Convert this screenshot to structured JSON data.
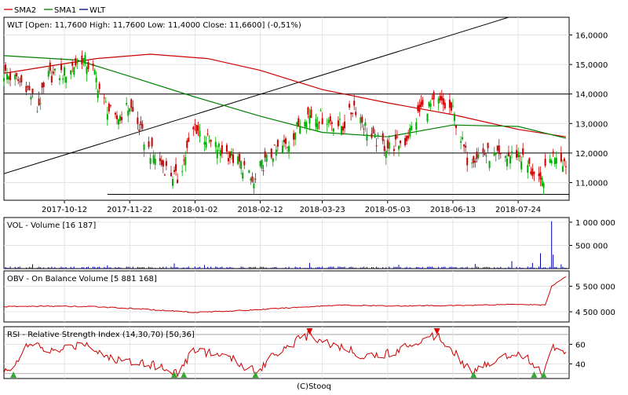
{
  "legend": [
    {
      "name": "SMA2",
      "color": "#cc0000"
    },
    {
      "name": "SMA1",
      "color": "#008000"
    },
    {
      "name": "WLT",
      "color": "#000080"
    }
  ],
  "footer": "(C)Stooq",
  "colors": {
    "up": "#00aa00",
    "down": "#cc0000",
    "volume": "#0000aa",
    "obv": "#cc0000",
    "rsi": "#cc0000",
    "trend": "#000000",
    "rsi_buy": "#33aa33",
    "rsi_sell": "#dd0000"
  },
  "chart_data": [
    {
      "type": "candlestick",
      "title": "WLT [Open: 11,7600  High: 11,7600  Low: 11,4000  Close: 11,6600] (-0,51%)",
      "x_labels": [
        "2017-10-12",
        "2017-11-22",
        "2018-01-02",
        "2018-02-12",
        "2018-03-23",
        "2018-05-03",
        "2018-06-13",
        "2018-07-24"
      ],
      "y_ticks": [
        "16,0000",
        "15,0000",
        "14,0000",
        "13,0000",
        "12,0000",
        "11,0000"
      ],
      "ylim": [
        10.4,
        16.6
      ],
      "xlim": [
        "2017-09-04",
        "2018-08-25"
      ],
      "grid": true,
      "ohlc_keypoints": [
        [
          "2017-09-04",
          14.7
        ],
        [
          "2017-09-18",
          14.3
        ],
        [
          "2017-09-25",
          13.5
        ],
        [
          "2017-10-02",
          14.6
        ],
        [
          "2017-10-12",
          14.7
        ],
        [
          "2017-10-23",
          15.2
        ],
        [
          "2017-10-30",
          14.8
        ],
        [
          "2017-11-06",
          13.7
        ],
        [
          "2017-11-13",
          13.1
        ],
        [
          "2017-11-22",
          13.6
        ],
        [
          "2017-12-04",
          12.1
        ],
        [
          "2017-12-14",
          11.5
        ],
        [
          "2017-12-22",
          11.1
        ],
        [
          "2018-01-02",
          12.9
        ],
        [
          "2018-01-12",
          12.3
        ],
        [
          "2018-01-22",
          12.0
        ],
        [
          "2018-02-02",
          11.5
        ],
        [
          "2018-02-08",
          10.9
        ],
        [
          "2018-02-12",
          11.5
        ],
        [
          "2018-02-20",
          12.0
        ],
        [
          "2018-03-01",
          12.3
        ],
        [
          "2018-03-12",
          13.3
        ],
        [
          "2018-03-23",
          13.2
        ],
        [
          "2018-04-05",
          12.9
        ],
        [
          "2018-04-12",
          13.6
        ],
        [
          "2018-04-23",
          12.5
        ],
        [
          "2018-05-03",
          12.2
        ],
        [
          "2018-05-14",
          12.4
        ],
        [
          "2018-05-24",
          13.5
        ],
        [
          "2018-06-04",
          13.7
        ],
        [
          "2018-06-13",
          13.4
        ],
        [
          "2018-06-22",
          11.8
        ],
        [
          "2018-07-02",
          12.0
        ],
        [
          "2018-07-13",
          11.8
        ],
        [
          "2018-07-24",
          12.0
        ],
        [
          "2018-07-31",
          11.5
        ],
        [
          "2018-08-07",
          10.9
        ],
        [
          "2018-08-14",
          11.9
        ],
        [
          "2018-08-17",
          12.0
        ],
        [
          "2018-08-23",
          11.66
        ]
      ],
      "sma2": [
        [
          "2017-09-04",
          14.7
        ],
        [
          "2017-11-01",
          15.2
        ],
        [
          "2017-12-05",
          15.35
        ],
        [
          "2018-01-10",
          15.2
        ],
        [
          "2018-02-12",
          14.8
        ],
        [
          "2018-03-23",
          14.15
        ],
        [
          "2018-05-03",
          13.7
        ],
        [
          "2018-06-13",
          13.3
        ],
        [
          "2018-07-24",
          12.8
        ],
        [
          "2018-08-23",
          12.55
        ]
      ],
      "sma1": [
        [
          "2017-09-04",
          15.3
        ],
        [
          "2017-10-20",
          15.15
        ],
        [
          "2017-11-22",
          14.6
        ],
        [
          "2018-01-02",
          13.9
        ],
        [
          "2018-02-12",
          13.25
        ],
        [
          "2018-03-23",
          12.7
        ],
        [
          "2018-05-03",
          12.55
        ],
        [
          "2018-06-13",
          12.95
        ],
        [
          "2018-07-24",
          12.9
        ],
        [
          "2018-08-23",
          12.5
        ]
      ],
      "trend_line": [
        [
          "2017-09-04",
          11.3
        ],
        [
          "2018-07-30",
          16.8
        ]
      ],
      "h_lines": [
        {
          "value": 14.0,
          "from": "2017-09-04",
          "to": "2018-08-25"
        },
        {
          "value": 12.0,
          "from": "2017-09-04",
          "to": "2018-08-25"
        },
        {
          "value": 10.6,
          "from": "2017-11-08",
          "to": "2018-08-25"
        }
      ]
    },
    {
      "type": "bar",
      "title": "VOL - Volume [16 187]",
      "y_ticks": [
        "1 000 000",
        "500 000"
      ],
      "ylim": [
        0,
        1100000
      ],
      "grid": true,
      "typical_volume": 30000,
      "volume_spikes": [
        [
          "2017-09-22",
          90000
        ],
        [
          "2017-11-08",
          70000
        ],
        [
          "2017-12-20",
          110000
        ],
        [
          "2018-01-08",
          75000
        ],
        [
          "2018-03-15",
          120000
        ],
        [
          "2018-05-10",
          80000
        ],
        [
          "2018-06-27",
          100000
        ],
        [
          "2018-07-20",
          160000
        ],
        [
          "2018-08-02",
          120000
        ],
        [
          "2018-08-07",
          330000
        ],
        [
          "2018-08-14",
          1020000
        ],
        [
          "2018-08-15",
          300000
        ],
        [
          "2018-08-20",
          90000
        ],
        [
          "2018-08-23",
          16187
        ]
      ]
    },
    {
      "type": "line",
      "title": "OBV - On Balance Volume [5 881 168]",
      "y_ticks": [
        "5 500 000",
        "4 500 000"
      ],
      "ylim": [
        4100000,
        6100000
      ],
      "grid": true,
      "values": [
        [
          "2017-09-04",
          4700000
        ],
        [
          "2017-10-01",
          4720000
        ],
        [
          "2017-11-01",
          4700000
        ],
        [
          "2017-12-01",
          4600000
        ],
        [
          "2018-01-02",
          4480000
        ],
        [
          "2018-02-01",
          4550000
        ],
        [
          "2018-03-01",
          4650000
        ],
        [
          "2018-04-01",
          4760000
        ],
        [
          "2018-05-03",
          4730000
        ],
        [
          "2018-06-13",
          4740000
        ],
        [
          "2018-07-24",
          4800000
        ],
        [
          "2018-08-10",
          4760000
        ],
        [
          "2018-08-14",
          5500000
        ],
        [
          "2018-08-20",
          5750000
        ],
        [
          "2018-08-23",
          5881168
        ]
      ]
    },
    {
      "type": "line",
      "title": "RSI - Relative Strength Index (14,30,70) [50,36]",
      "y_ticks": [
        "60",
        "40"
      ],
      "ylim": [
        25,
        78
      ],
      "grid": true,
      "levels": [
        30,
        70
      ],
      "values": [
        [
          "2017-09-04",
          30
        ],
        [
          "2017-09-10",
          40
        ],
        [
          "2017-09-20",
          60
        ],
        [
          "2017-10-05",
          52
        ],
        [
          "2017-10-25",
          62
        ],
        [
          "2017-11-10",
          45
        ],
        [
          "2017-12-01",
          42
        ],
        [
          "2017-12-22",
          31
        ],
        [
          "2018-01-02",
          55
        ],
        [
          "2018-01-20",
          48
        ],
        [
          "2018-02-10",
          32
        ],
        [
          "2018-02-20",
          50
        ],
        [
          "2018-03-05",
          62
        ],
        [
          "2018-03-15",
          70
        ],
        [
          "2018-04-01",
          58
        ],
        [
          "2018-04-20",
          48
        ],
        [
          "2018-05-03",
          50
        ],
        [
          "2018-05-20",
          62
        ],
        [
          "2018-06-03",
          70
        ],
        [
          "2018-06-13",
          55
        ],
        [
          "2018-06-25",
          30
        ],
        [
          "2018-07-10",
          45
        ],
        [
          "2018-07-24",
          52
        ],
        [
          "2018-08-02",
          42
        ],
        [
          "2018-08-08",
          28
        ],
        [
          "2018-08-14",
          55
        ],
        [
          "2018-08-18",
          60
        ],
        [
          "2018-08-23",
          50.36
        ]
      ],
      "buy_signals": [
        "2017-09-10",
        "2017-12-20",
        "2017-12-26",
        "2018-02-09",
        "2018-06-26",
        "2018-08-03",
        "2018-08-09"
      ],
      "sell_signals": [
        "2018-03-15",
        "2018-06-03"
      ]
    }
  ]
}
